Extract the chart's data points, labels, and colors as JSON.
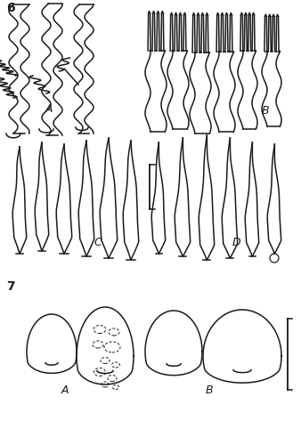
{
  "background_color": "#ffffff",
  "fig_number_6": "6",
  "fig_number_7": "7",
  "label_A_top": "A",
  "label_B_top": "B",
  "label_C": "C",
  "label_D": "D",
  "label_A_bot": "A",
  "label_B_bot": "B",
  "line_color": "#1a1a1a",
  "line_width": 1.1,
  "fig_width": 3.38,
  "fig_height": 5.0,
  "dpi": 100
}
